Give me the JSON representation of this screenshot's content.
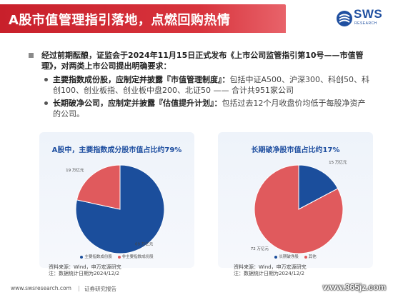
{
  "header": {
    "title": "A股市值管理指引落地，点燃回购热情",
    "logo_text": "SWS",
    "logo_sub": "RESEARCH"
  },
  "content": {
    "main_bullet": "经过前期酝酿，证监会于2024年11月15日正式发布《上市公司监管指引第10号——市值管理》，对两类上市公司提出明确要求：",
    "items": [
      {
        "bold": "主要指数成份股，应制定并披露『市值管理制度』：",
        "text": "包括中证A500、沪深300、科创50、科创100、创业板指、创业板中盘200、北证50 —— 合计共951家公司"
      },
      {
        "bold": "长期破净公司，应制定并披露『估值提升计划』：",
        "text": "包括过去12个月收盘价均低于每股净资产的公司。"
      }
    ]
  },
  "colors": {
    "blue": "#1b4e9c",
    "red": "#e05a5d",
    "title_red": "#c8202b"
  },
  "chart_data": [
    {
      "type": "pie",
      "title": "A股中，主要指数成分股市值占比约79%",
      "slices": [
        {
          "name": "主要指数成份股",
          "value": 69,
          "label": "69 万亿元",
          "color": "#1b4e9c"
        },
        {
          "name": "非主要指数成份股",
          "value": 19,
          "label": "19 万亿元",
          "color": "#e05a5d"
        }
      ],
      "legend": [
        "主要指数成份股",
        "非主要指数成份股"
      ],
      "legend_position": "bottom"
    },
    {
      "type": "pie",
      "title": "长期破净股市值占比约17%",
      "slices": [
        {
          "name": "长期破净股",
          "value": 15,
          "label": "15 万亿元",
          "color": "#1b4e9c"
        },
        {
          "name": "其他",
          "value": 72,
          "label": "72 万亿元",
          "color": "#e05a5d"
        }
      ],
      "legend": [
        "长期破净股",
        "其他"
      ],
      "legend_position": "bottom"
    }
  ],
  "notes": {
    "left": [
      "资料来源：Wind，申万宏源研究",
      "注：数据统计日期为2024/12/2"
    ],
    "right": [
      "资料来源：Wind，申万宏源研究",
      "注：数据统计日期为2024/12/2"
    ]
  },
  "footer": {
    "url": "www.swsresearch.com",
    "label": "证券研究报告",
    "watermark": "www.365jz.com"
  }
}
